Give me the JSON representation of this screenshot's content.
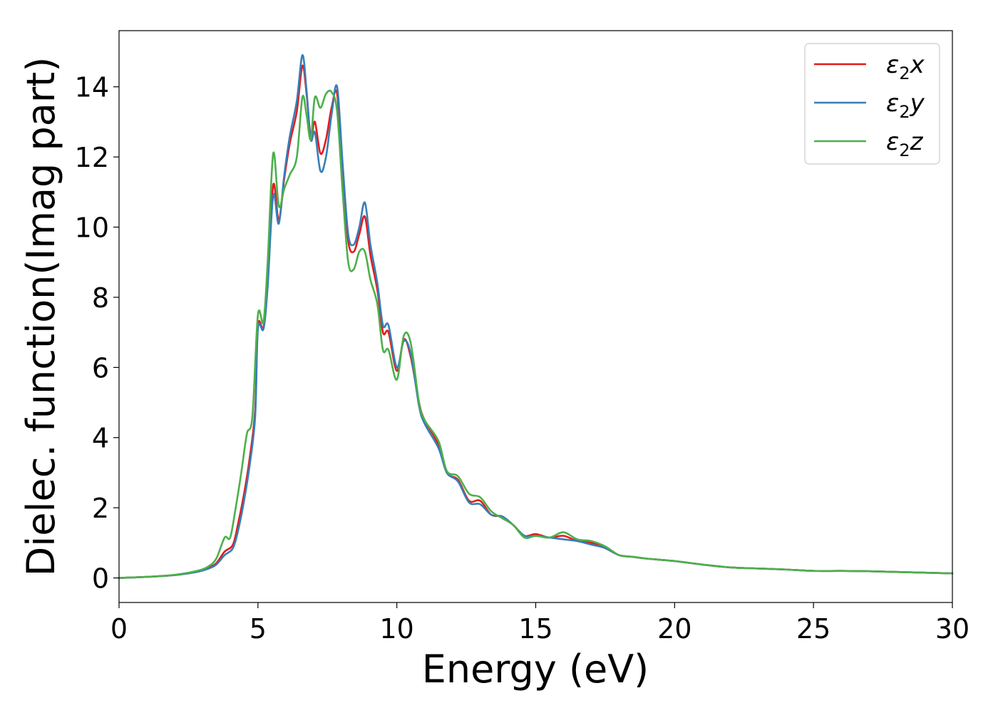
{
  "chart_data": {
    "type": "line",
    "title": "",
    "xlabel": "Energy (eV)",
    "ylabel": "Dielec. function(Imag part)",
    "xlim": [
      0,
      30
    ],
    "ylim": [
      -0.7,
      15.6
    ],
    "xticks": [
      0,
      5,
      10,
      15,
      20,
      25,
      30
    ],
    "yticks": [
      0,
      2,
      4,
      6,
      8,
      10,
      12,
      14
    ],
    "grid": false,
    "legend_position": "top-right",
    "series": [
      {
        "name": "ε₂x",
        "legend_base": "ε",
        "legend_sub": "2",
        "legend_suffix": "x",
        "color": "#e41a1c",
        "points": [
          [
            0,
            0.0
          ],
          [
            1,
            0.03
          ],
          [
            2,
            0.08
          ],
          [
            2.8,
            0.18
          ],
          [
            3.2,
            0.28
          ],
          [
            3.5,
            0.42
          ],
          [
            3.8,
            0.75
          ],
          [
            4.1,
            0.95
          ],
          [
            4.3,
            1.6
          ],
          [
            4.5,
            2.4
          ],
          [
            4.7,
            3.4
          ],
          [
            4.9,
            4.8
          ],
          [
            5.0,
            7.2
          ],
          [
            5.2,
            7.15
          ],
          [
            5.35,
            8.5
          ],
          [
            5.55,
            11.2
          ],
          [
            5.75,
            10.2
          ],
          [
            5.95,
            11.4
          ],
          [
            6.15,
            12.4
          ],
          [
            6.4,
            13.3
          ],
          [
            6.6,
            14.6
          ],
          [
            6.75,
            13.8
          ],
          [
            6.9,
            12.6
          ],
          [
            7.05,
            13.0
          ],
          [
            7.25,
            12.1
          ],
          [
            7.45,
            12.5
          ],
          [
            7.65,
            13.4
          ],
          [
            7.85,
            13.8
          ],
          [
            8.05,
            11.5
          ],
          [
            8.25,
            9.6
          ],
          [
            8.45,
            9.3
          ],
          [
            8.65,
            9.8
          ],
          [
            8.85,
            10.3
          ],
          [
            9.05,
            9.2
          ],
          [
            9.3,
            8.2
          ],
          [
            9.5,
            7.0
          ],
          [
            9.7,
            7.0
          ],
          [
            10.0,
            5.9
          ],
          [
            10.25,
            6.8
          ],
          [
            10.5,
            6.3
          ],
          [
            10.8,
            5.0
          ],
          [
            11.0,
            4.5
          ],
          [
            11.5,
            3.8
          ],
          [
            11.8,
            3.0
          ],
          [
            12.2,
            2.8
          ],
          [
            12.6,
            2.2
          ],
          [
            13.0,
            2.2
          ],
          [
            13.4,
            1.8
          ],
          [
            13.8,
            1.75
          ],
          [
            14.2,
            1.5
          ],
          [
            14.6,
            1.2
          ],
          [
            15.0,
            1.25
          ],
          [
            15.5,
            1.15
          ],
          [
            16.0,
            1.2
          ],
          [
            16.5,
            1.05
          ],
          [
            17.0,
            1.0
          ],
          [
            17.5,
            0.85
          ],
          [
            18.0,
            0.65
          ],
          [
            18.5,
            0.6
          ],
          [
            19.0,
            0.55
          ],
          [
            20.0,
            0.48
          ],
          [
            21.0,
            0.38
          ],
          [
            22.0,
            0.3
          ],
          [
            23.0,
            0.27
          ],
          [
            24.0,
            0.24
          ],
          [
            25.0,
            0.2
          ],
          [
            26.0,
            0.2
          ],
          [
            27.0,
            0.19
          ],
          [
            28.0,
            0.17
          ],
          [
            29.0,
            0.15
          ],
          [
            30.0,
            0.13
          ]
        ]
      },
      {
        "name": "ε₂y",
        "legend_base": "ε",
        "legend_sub": "2",
        "legend_suffix": "y",
        "color": "#377eb8",
        "points": [
          [
            0,
            0.0
          ],
          [
            1,
            0.03
          ],
          [
            2,
            0.08
          ],
          [
            2.8,
            0.17
          ],
          [
            3.2,
            0.26
          ],
          [
            3.5,
            0.38
          ],
          [
            3.8,
            0.65
          ],
          [
            4.1,
            0.85
          ],
          [
            4.3,
            1.4
          ],
          [
            4.5,
            2.2
          ],
          [
            4.7,
            3.2
          ],
          [
            4.9,
            4.6
          ],
          [
            5.0,
            7.1
          ],
          [
            5.2,
            7.1
          ],
          [
            5.35,
            8.3
          ],
          [
            5.55,
            10.9
          ],
          [
            5.75,
            10.1
          ],
          [
            5.95,
            11.5
          ],
          [
            6.15,
            12.6
          ],
          [
            6.4,
            13.6
          ],
          [
            6.6,
            14.9
          ],
          [
            6.75,
            13.9
          ],
          [
            6.9,
            12.5
          ],
          [
            7.05,
            12.7
          ],
          [
            7.25,
            11.6
          ],
          [
            7.45,
            12.0
          ],
          [
            7.65,
            13.2
          ],
          [
            7.85,
            14.0
          ],
          [
            8.05,
            11.8
          ],
          [
            8.25,
            9.8
          ],
          [
            8.45,
            9.5
          ],
          [
            8.65,
            10.0
          ],
          [
            8.85,
            10.7
          ],
          [
            9.05,
            9.5
          ],
          [
            9.3,
            8.4
          ],
          [
            9.5,
            7.2
          ],
          [
            9.7,
            7.2
          ],
          [
            10.0,
            6.0
          ],
          [
            10.25,
            6.75
          ],
          [
            10.5,
            6.4
          ],
          [
            10.8,
            4.9
          ],
          [
            11.0,
            4.4
          ],
          [
            11.5,
            3.7
          ],
          [
            11.8,
            3.0
          ],
          [
            12.2,
            2.75
          ],
          [
            12.6,
            2.15
          ],
          [
            13.0,
            2.1
          ],
          [
            13.4,
            1.8
          ],
          [
            13.8,
            1.75
          ],
          [
            14.2,
            1.5
          ],
          [
            14.6,
            1.2
          ],
          [
            15.0,
            1.2
          ],
          [
            15.5,
            1.15
          ],
          [
            16.0,
            1.1
          ],
          [
            16.5,
            1.05
          ],
          [
            17.0,
            0.95
          ],
          [
            17.5,
            0.85
          ],
          [
            18.0,
            0.65
          ],
          [
            18.5,
            0.6
          ],
          [
            19.0,
            0.55
          ],
          [
            20.0,
            0.48
          ],
          [
            21.0,
            0.38
          ],
          [
            22.0,
            0.3
          ],
          [
            23.0,
            0.27
          ],
          [
            24.0,
            0.24
          ],
          [
            25.0,
            0.2
          ],
          [
            26.0,
            0.2
          ],
          [
            27.0,
            0.19
          ],
          [
            28.0,
            0.17
          ],
          [
            29.0,
            0.15
          ],
          [
            30.0,
            0.13
          ]
        ]
      },
      {
        "name": "ε₂z",
        "legend_base": "ε",
        "legend_sub": "2",
        "legend_suffix": "z",
        "color": "#4daf4a",
        "points": [
          [
            0,
            0.0
          ],
          [
            1,
            0.03
          ],
          [
            2,
            0.09
          ],
          [
            2.8,
            0.2
          ],
          [
            3.2,
            0.32
          ],
          [
            3.5,
            0.55
          ],
          [
            3.8,
            1.15
          ],
          [
            4.0,
            1.15
          ],
          [
            4.2,
            2.0
          ],
          [
            4.4,
            3.0
          ],
          [
            4.6,
            4.1
          ],
          [
            4.8,
            4.6
          ],
          [
            5.0,
            7.5
          ],
          [
            5.2,
            7.3
          ],
          [
            5.35,
            9.0
          ],
          [
            5.55,
            12.1
          ],
          [
            5.75,
            10.6
          ],
          [
            5.95,
            11.1
          ],
          [
            6.15,
            11.5
          ],
          [
            6.4,
            12.0
          ],
          [
            6.6,
            13.7
          ],
          [
            6.75,
            13.2
          ],
          [
            6.9,
            12.5
          ],
          [
            7.05,
            13.7
          ],
          [
            7.25,
            13.4
          ],
          [
            7.45,
            13.8
          ],
          [
            7.65,
            13.85
          ],
          [
            7.85,
            13.3
          ],
          [
            8.05,
            11.0
          ],
          [
            8.25,
            9.0
          ],
          [
            8.45,
            8.8
          ],
          [
            8.65,
            9.3
          ],
          [
            8.85,
            9.3
          ],
          [
            9.05,
            8.5
          ],
          [
            9.3,
            7.8
          ],
          [
            9.5,
            6.5
          ],
          [
            9.7,
            6.5
          ],
          [
            10.0,
            5.65
          ],
          [
            10.25,
            6.9
          ],
          [
            10.5,
            6.7
          ],
          [
            10.8,
            5.0
          ],
          [
            11.0,
            4.5
          ],
          [
            11.5,
            3.9
          ],
          [
            11.8,
            3.05
          ],
          [
            12.2,
            2.9
          ],
          [
            12.6,
            2.4
          ],
          [
            13.0,
            2.3
          ],
          [
            13.4,
            1.9
          ],
          [
            13.8,
            1.7
          ],
          [
            14.2,
            1.5
          ],
          [
            14.6,
            1.15
          ],
          [
            15.0,
            1.2
          ],
          [
            15.5,
            1.15
          ],
          [
            16.0,
            1.3
          ],
          [
            16.5,
            1.1
          ],
          [
            17.0,
            1.05
          ],
          [
            17.5,
            0.9
          ],
          [
            18.0,
            0.65
          ],
          [
            18.5,
            0.6
          ],
          [
            19.0,
            0.55
          ],
          [
            20.0,
            0.48
          ],
          [
            21.0,
            0.38
          ],
          [
            22.0,
            0.3
          ],
          [
            23.0,
            0.27
          ],
          [
            24.0,
            0.24
          ],
          [
            25.0,
            0.2
          ],
          [
            26.0,
            0.2
          ],
          [
            27.0,
            0.19
          ],
          [
            28.0,
            0.17
          ],
          [
            29.0,
            0.15
          ],
          [
            30.0,
            0.13
          ]
        ]
      }
    ]
  }
}
